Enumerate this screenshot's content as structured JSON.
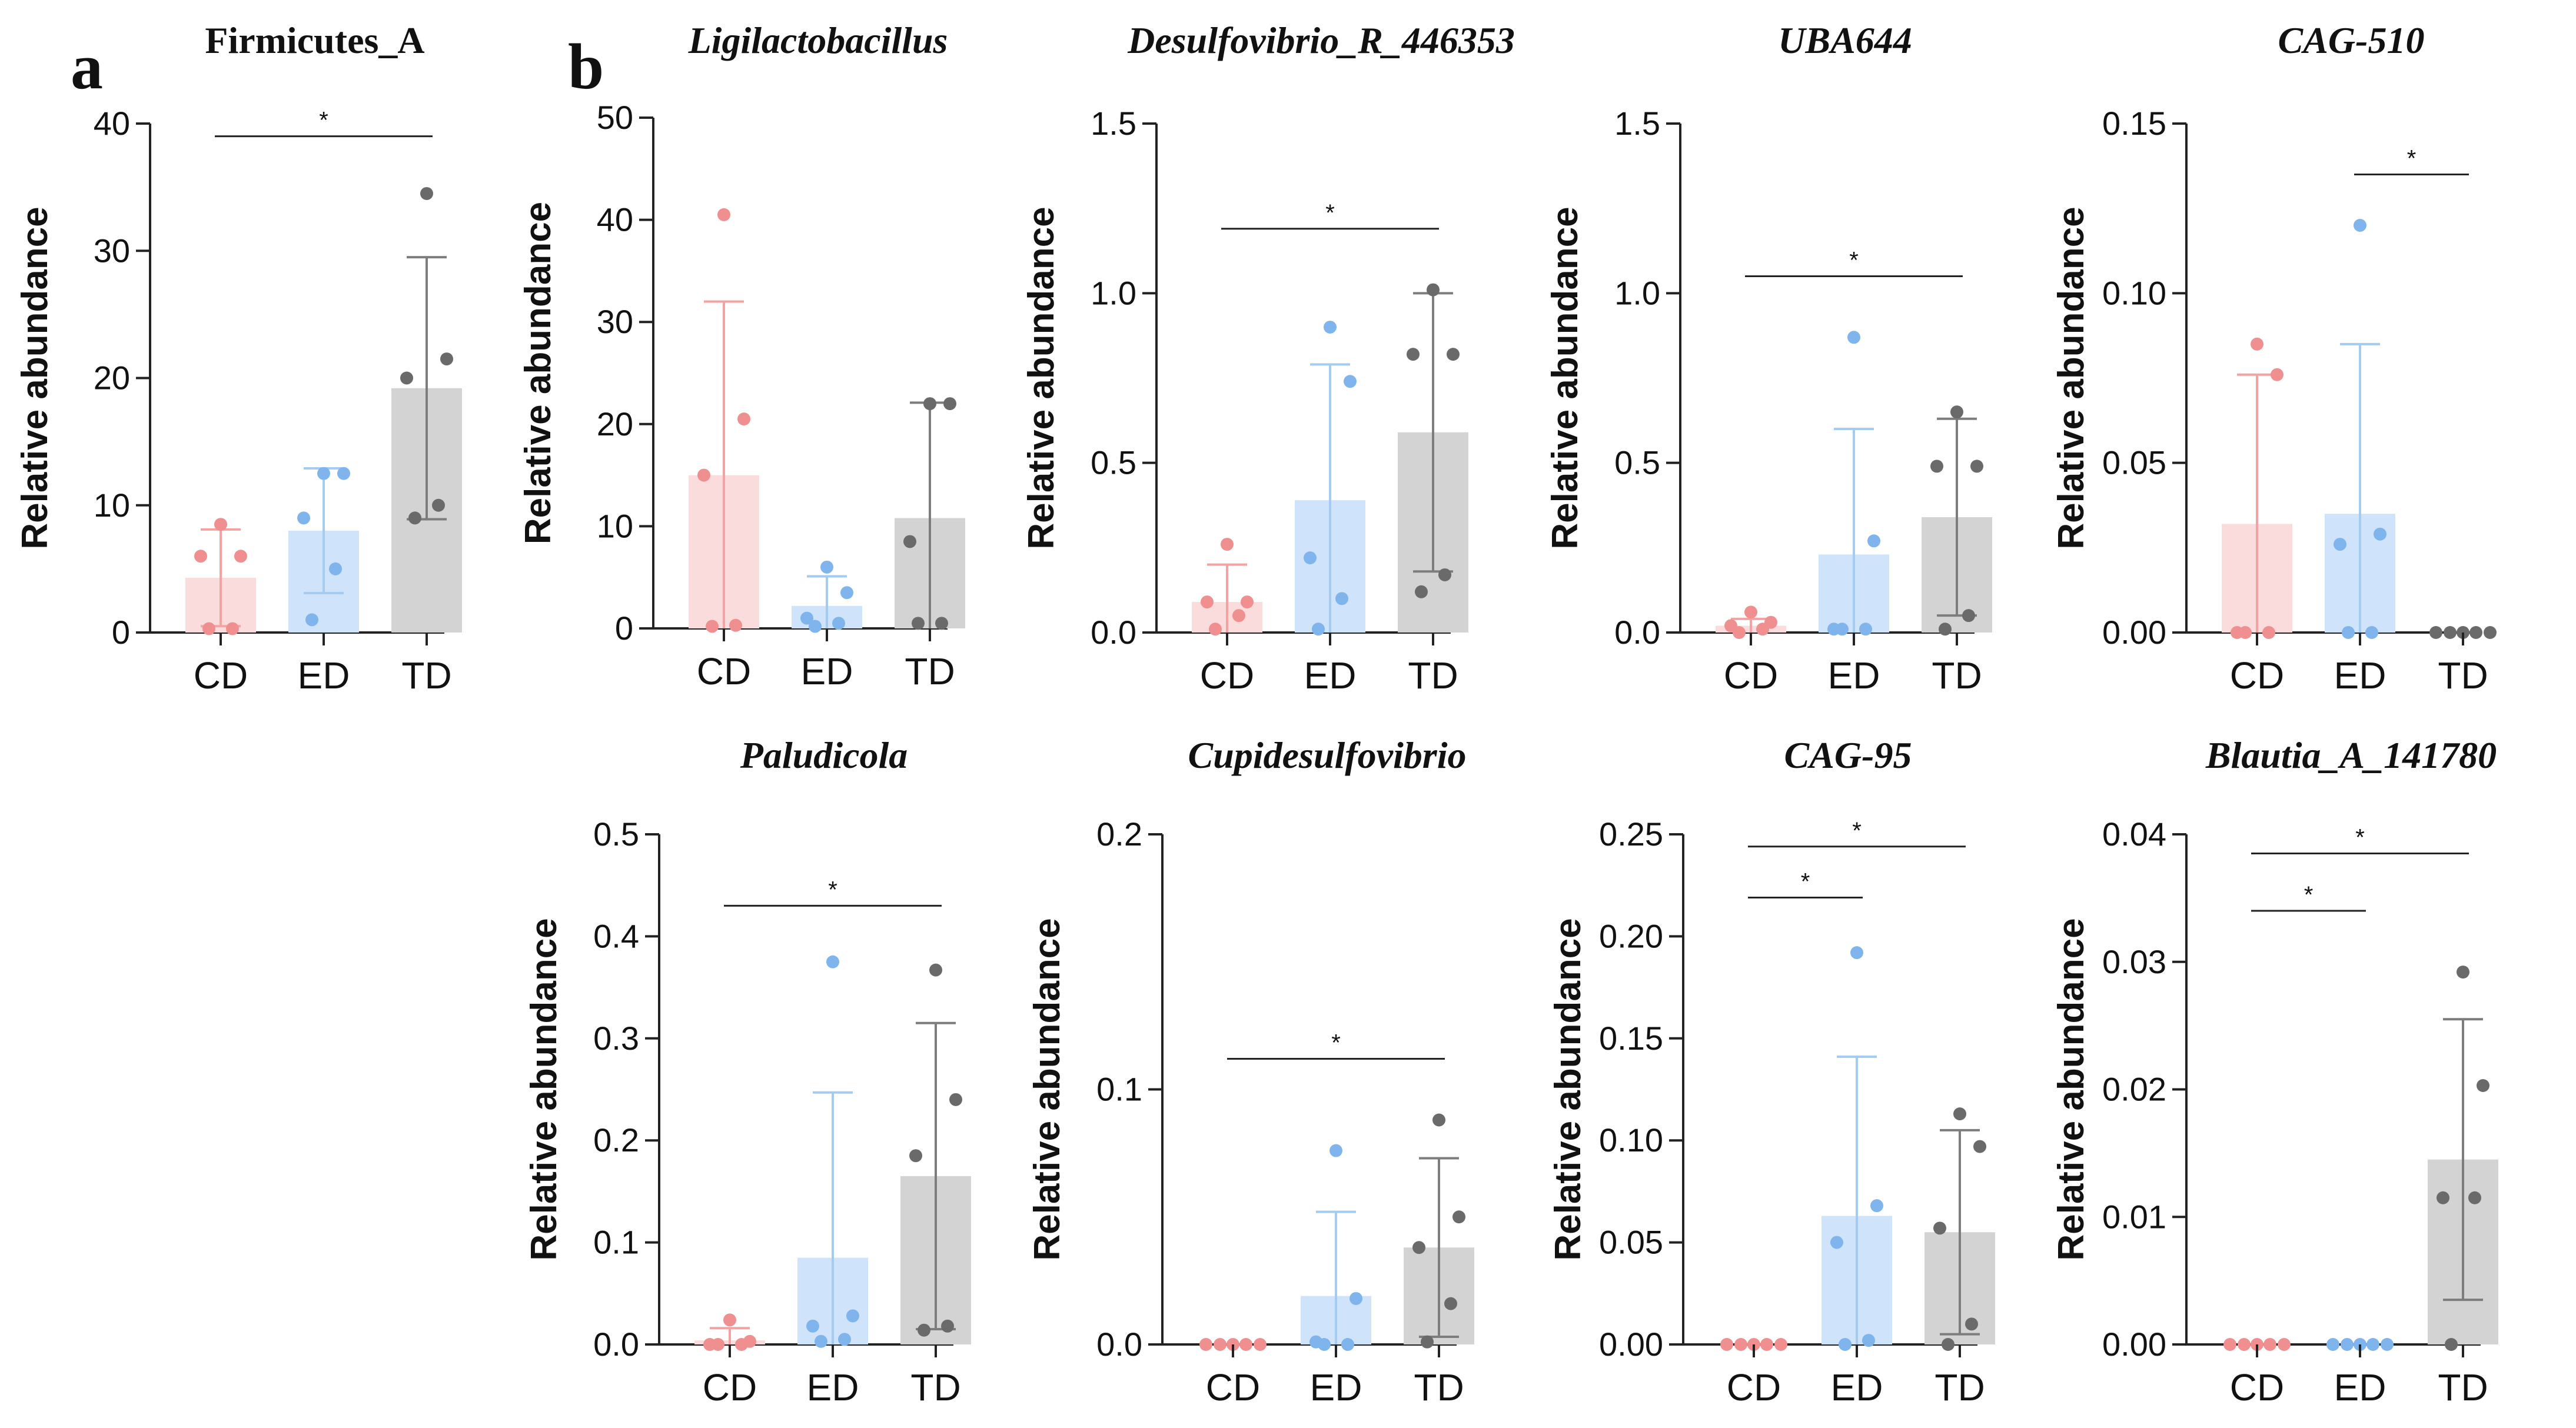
{
  "figure": {
    "panel_labels": [
      "a",
      "b"
    ],
    "colors": {
      "CD": "#f4a7a7",
      "ED": "#a9cdf2",
      "TD": "#b9b9b9"
    },
    "bar_colors": {
      "CD": "#fbdcdc",
      "ED": "#cfe3fa",
      "TD": "#d3d3d3"
    },
    "dot_colors": {
      "CD": "#f08f8f",
      "ED": "#7fb5ec",
      "TD": "#6a6a6a"
    },
    "err_colors": {
      "CD": "#f3a3a3",
      "ED": "#a5cbf1",
      "TD": "#7d7d7d"
    }
  },
  "chart_data": [
    {
      "type": "bar",
      "title": "Firmicutes_A",
      "italic": false,
      "ylabel": "Relative abundance",
      "categories": [
        "CD",
        "ED",
        "TD"
      ],
      "ylim": [
        0,
        40
      ],
      "yticks": [
        0,
        10,
        20,
        30,
        40
      ],
      "ytick_labels": [
        "0",
        "10",
        "20",
        "30",
        "40"
      ],
      "means": [
        4.3,
        8.0,
        19.2
      ],
      "sd": [
        3.8,
        4.9,
        10.3
      ],
      "points": [
        [
          8.5,
          6.0,
          6.0,
          0.3,
          0.3
        ],
        [
          12.5,
          12.5,
          9.0,
          5.0,
          1.0
        ],
        [
          34.5,
          21.5,
          20.0,
          10.0,
          9.0
        ]
      ],
      "significance": [
        {
          "from": "CD",
          "to": "TD",
          "label": "*",
          "y": 39.0
        }
      ]
    },
    {
      "type": "bar",
      "title": "Ligilactobacillus",
      "italic": true,
      "ylabel": "Relative abundance",
      "categories": [
        "CD",
        "ED",
        "TD"
      ],
      "ylim": [
        0,
        50
      ],
      "yticks": [
        0,
        10,
        20,
        30,
        40,
        50
      ],
      "ytick_labels": [
        "0",
        "10",
        "20",
        "30",
        "40",
        "50"
      ],
      "means": [
        15.0,
        2.2,
        10.8
      ],
      "sd": [
        17.0,
        2.9,
        11.3
      ],
      "points": [
        [
          40.5,
          20.5,
          15.0,
          0.3,
          0.2
        ],
        [
          6.0,
          3.5,
          1.0,
          0.5,
          0.2
        ],
        [
          22.0,
          22.0,
          8.5,
          0.5,
          0.5
        ]
      ],
      "significance": []
    },
    {
      "type": "bar",
      "title": "Desulfovibrio_R_446353",
      "italic": true,
      "ylabel": "Relative abundance",
      "categories": [
        "CD",
        "ED",
        "TD"
      ],
      "ylim": [
        0,
        1.5
      ],
      "yticks": [
        0,
        0.5,
        1.0,
        1.5
      ],
      "ytick_labels": [
        "0.0",
        "0.5",
        "1.0",
        "1.5"
      ],
      "means": [
        0.09,
        0.39,
        0.59
      ],
      "sd": [
        0.11,
        0.4,
        0.41
      ],
      "points": [
        [
          0.26,
          0.09,
          0.09,
          0.05,
          0.01
        ],
        [
          0.9,
          0.74,
          0.22,
          0.1,
          0.01
        ],
        [
          1.01,
          0.82,
          0.82,
          0.17,
          0.12
        ]
      ],
      "significance": [
        {
          "from": "CD",
          "to": "TD",
          "label": "*",
          "y": 1.19
        }
      ]
    },
    {
      "type": "bar",
      "title": "UBA644",
      "italic": true,
      "ylabel": "Relative abundance",
      "categories": [
        "CD",
        "ED",
        "TD"
      ],
      "ylim": [
        0,
        1.5
      ],
      "yticks": [
        0,
        0.5,
        1.0,
        1.5
      ],
      "ytick_labels": [
        "0.0",
        "0.5",
        "1.0",
        "1.5"
      ],
      "means": [
        0.02,
        0.23,
        0.34
      ],
      "sd": [
        0.02,
        0.37,
        0.29
      ],
      "points": [
        [
          0.06,
          0.03,
          0.02,
          0.01,
          0.0
        ],
        [
          0.87,
          0.27,
          0.01,
          0.01,
          0.01
        ],
        [
          0.65,
          0.49,
          0.49,
          0.05,
          0.01
        ]
      ],
      "significance": [
        {
          "from": "CD",
          "to": "TD",
          "label": "*",
          "y": 1.05
        }
      ]
    },
    {
      "type": "bar",
      "title": "CAG-510",
      "italic": true,
      "ylabel": "Relative abundance",
      "categories": [
        "CD",
        "ED",
        "TD"
      ],
      "ylim": [
        0,
        0.15
      ],
      "yticks": [
        0,
        0.05,
        0.1,
        0.15
      ],
      "ytick_labels": [
        "0.00",
        "0.05",
        "0.10",
        "0.15"
      ],
      "means": [
        0.032,
        0.035,
        0.0
      ],
      "sd": [
        0.044,
        0.05,
        0.0
      ],
      "points": [
        [
          0.085,
          0.076,
          0.0,
          0.0,
          0.0
        ],
        [
          0.12,
          0.029,
          0.026,
          0.0,
          0.0
        ],
        [
          0.0,
          0.0,
          0.0,
          0.0,
          0.0
        ]
      ],
      "significance": [
        {
          "from": "ED",
          "to": "TD",
          "label": "*",
          "y": 0.135
        }
      ]
    },
    {
      "type": "bar",
      "title": "Paludicola",
      "italic": true,
      "ylabel": "Relative abundance",
      "categories": [
        "CD",
        "ED",
        "TD"
      ],
      "ylim": [
        0,
        0.5
      ],
      "yticks": [
        0,
        0.1,
        0.2,
        0.3,
        0.4,
        0.5
      ],
      "ytick_labels": [
        "0.0",
        "0.1",
        "0.2",
        "0.3",
        "0.4",
        "0.5"
      ],
      "means": [
        0.004,
        0.085,
        0.165
      ],
      "sd": [
        0.012,
        0.162,
        0.15
      ],
      "points": [
        [
          0.024,
          0.003,
          0.0,
          0.0,
          0.0
        ],
        [
          0.375,
          0.028,
          0.018,
          0.005,
          0.003
        ],
        [
          0.367,
          0.24,
          0.185,
          0.018,
          0.014
        ]
      ],
      "significance": [
        {
          "from": "CD",
          "to": "TD",
          "label": "*",
          "y": 0.43
        }
      ]
    },
    {
      "type": "bar",
      "title": "Cupidesulfovibrio",
      "italic": true,
      "ylabel": "Relative abundance",
      "categories": [
        "CD",
        "ED",
        "TD"
      ],
      "ylim": [
        0,
        0.2
      ],
      "yticks": [
        0,
        0.1,
        0.2
      ],
      "ytick_labels": [
        "0.0",
        "0.1",
        "0.2"
      ],
      "means": [
        0.0,
        0.019,
        0.038
      ],
      "sd": [
        0.0,
        0.033,
        0.035
      ],
      "points": [
        [
          0.0,
          0.0,
          0.0,
          0.0,
          0.0
        ],
        [
          0.076,
          0.018,
          0.001,
          0.0,
          0.0
        ],
        [
          0.088,
          0.05,
          0.038,
          0.016,
          0.001
        ]
      ],
      "significance": [
        {
          "from": "CD",
          "to": "TD",
          "label": "*",
          "y": 0.112
        }
      ]
    },
    {
      "type": "bar",
      "title": "CAG-95",
      "italic": true,
      "ylabel": "Relative abundance",
      "categories": [
        "CD",
        "ED",
        "TD"
      ],
      "ylim": [
        0,
        0.25
      ],
      "yticks": [
        0,
        0.05,
        0.1,
        0.15,
        0.2,
        0.25
      ],
      "ytick_labels": [
        "0.00",
        "0.05",
        "0.10",
        "0.15",
        "0.20",
        "0.25"
      ],
      "means": [
        0.0,
        0.063,
        0.055
      ],
      "sd": [
        0.0,
        0.078,
        0.05
      ],
      "points": [
        [
          0.0,
          0.0,
          0.0,
          0.0,
          0.0
        ],
        [
          0.192,
          0.068,
          0.05,
          0.002,
          0.0
        ],
        [
          0.113,
          0.097,
          0.057,
          0.01,
          0.0
        ]
      ],
      "significance": [
        {
          "from": "CD",
          "to": "ED",
          "label": "*",
          "y": 0.219
        },
        {
          "from": "CD",
          "to": "TD",
          "label": "*",
          "y": 0.244
        }
      ]
    },
    {
      "type": "bar",
      "title": "Blautia_A_141780",
      "italic": true,
      "ylabel": "Relative abundance",
      "categories": [
        "CD",
        "ED",
        "TD"
      ],
      "ylim": [
        0,
        0.04
      ],
      "yticks": [
        0,
        0.01,
        0.02,
        0.03,
        0.04
      ],
      "ytick_labels": [
        "0.00",
        "0.01",
        "0.02",
        "0.03",
        "0.04"
      ],
      "means": [
        0.0,
        0.0,
        0.0145
      ],
      "sd": [
        0.0,
        0.0,
        0.011
      ],
      "points": [
        [
          0.0,
          0.0,
          0.0,
          0.0,
          0.0
        ],
        [
          0.0,
          0.0,
          0.0,
          0.0,
          0.0
        ],
        [
          0.0292,
          0.0203,
          0.0115,
          0.0115,
          0.0
        ]
      ],
      "significance": [
        {
          "from": "CD",
          "to": "ED",
          "label": "*",
          "y": 0.034
        },
        {
          "from": "CD",
          "to": "TD",
          "label": "*",
          "y": 0.0385
        }
      ]
    }
  ]
}
